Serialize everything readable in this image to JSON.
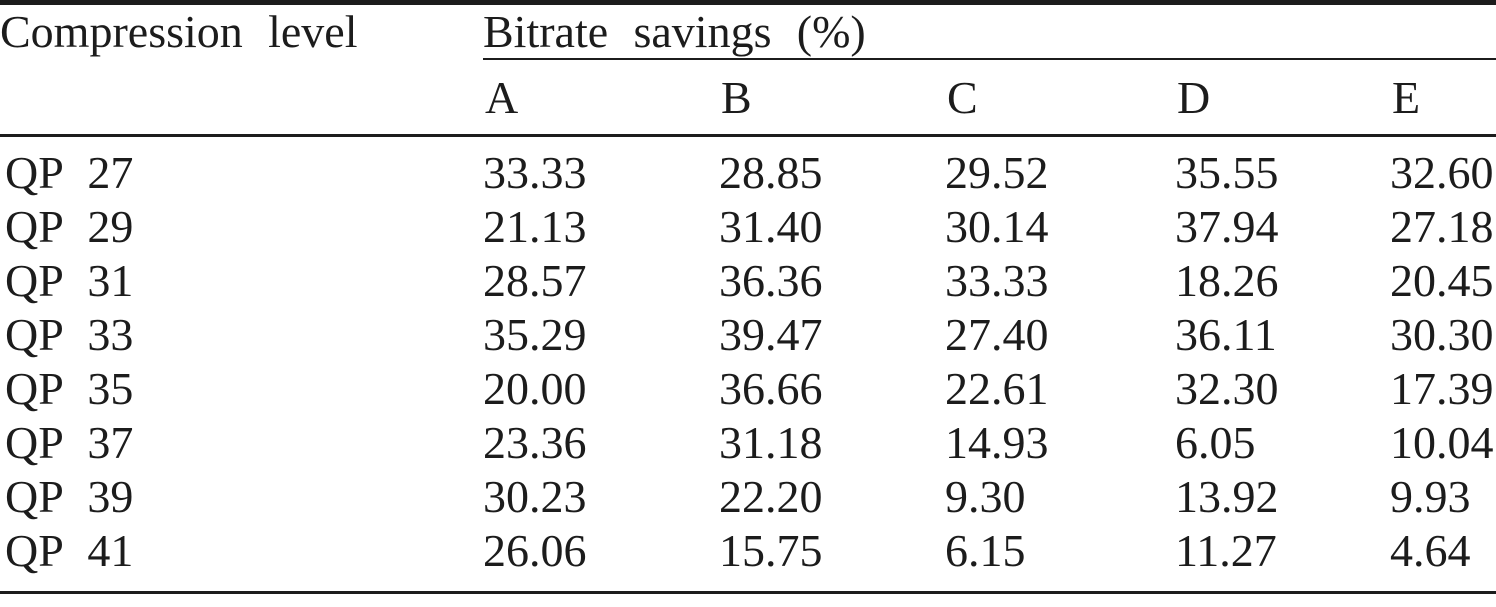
{
  "table": {
    "col1_header": "Compression level",
    "group_header": "Bitrate savings (%)",
    "columns": [
      "A",
      "B",
      "C",
      "D",
      "E"
    ],
    "rows": [
      {
        "label": "QP 27",
        "values": [
          "33.33",
          "28.85",
          "29.52",
          "35.55",
          "32.60"
        ]
      },
      {
        "label": "QP 29",
        "values": [
          "21.13",
          "31.40",
          "30.14",
          "37.94",
          "27.18"
        ]
      },
      {
        "label": "QP 31",
        "values": [
          "28.57",
          "36.36",
          "33.33",
          "18.26",
          "20.45"
        ]
      },
      {
        "label": "QP 33",
        "values": [
          "35.29",
          "39.47",
          "27.40",
          "36.11",
          "30.30"
        ]
      },
      {
        "label": "QP 35",
        "values": [
          "20.00",
          "36.66",
          "22.61",
          "32.30",
          "17.39"
        ]
      },
      {
        "label": "QP 37",
        "values": [
          "23.36",
          "31.18",
          "14.93",
          "6.05",
          "10.04"
        ]
      },
      {
        "label": "QP 39",
        "values": [
          "30.23",
          "22.20",
          "9.30",
          "13.92",
          "9.93"
        ]
      },
      {
        "label": "QP 41",
        "values": [
          "26.06",
          "15.75",
          "6.15",
          "11.27",
          "4.64"
        ]
      }
    ],
    "colors": {
      "text": "#1c1c1c",
      "background": "#ffffff",
      "rule": "#1c1c1c"
    }
  }
}
